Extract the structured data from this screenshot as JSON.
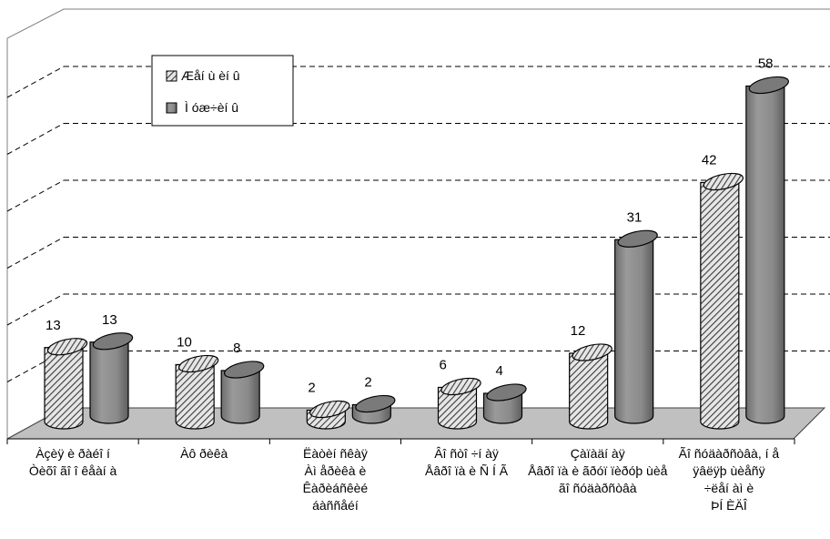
{
  "chart_data": {
    "type": "bar",
    "style": "3d-cylinder",
    "categories": [
      [
        "Àçèÿ è ðàéî í",
        "Òèõî ãî î êåàí à"
      ],
      [
        "Àô ðèêà"
      ],
      [
        "Ëàòèí ñêàÿ",
        "Àì åðèêà è",
        "Êàðèáñêèé",
        "áàññåéí"
      ],
      [
        "Âî ñòî ÷í àÿ",
        "Åâðî ïà è Ñ Í Ã"
      ],
      [
        "Çàïàäí àÿ",
        "Åâðî ïà è ãðóï ïèðóþ ùèå",
        "ãî ñóäàðñòâà"
      ],
      [
        "Ãî ñóäàðñòâà, í å",
        "ÿâëÿþ ùèåñÿ",
        "÷ëåí àì è",
        "ÞÍ ÈÄÎ"
      ]
    ],
    "series": [
      {
        "name": "Æåí ù èí û",
        "values": [
          13,
          10,
          2,
          6,
          12,
          42
        ],
        "pattern": "hatch",
        "color": "#a8a8a8"
      },
      {
        "name": "Ì óæ÷èí û",
        "values": [
          13,
          8,
          2,
          4,
          31,
          58
        ],
        "pattern": "solid",
        "color": "#8c8c8c"
      }
    ],
    "ylim": [
      0,
      70
    ],
    "grid": true,
    "legend": "top-left"
  }
}
